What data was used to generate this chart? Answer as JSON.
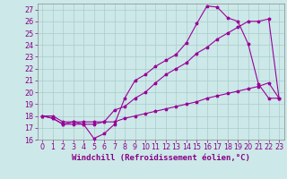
{
  "background_color": "#cce8e8",
  "grid_color": "#aacccc",
  "line_color": "#990099",
  "marker": "*",
  "xlim": [
    -0.5,
    23.5
  ],
  "ylim": [
    16,
    27.5
  ],
  "xlabel": "Windchill (Refroidissement éolien,°C)",
  "xlabel_fontsize": 6.5,
  "tick_fontsize": 5.8,
  "tick_color": "#880088",
  "line1_x": [
    0,
    1,
    2,
    3,
    4,
    5,
    6,
    7,
    8,
    9,
    10,
    11,
    12,
    13,
    14,
    15,
    16,
    17,
    18,
    19,
    20,
    21,
    22,
    23
  ],
  "line1_y": [
    18,
    17.8,
    17.3,
    17.3,
    17.3,
    16.1,
    16.5,
    17.3,
    19.5,
    21.0,
    21.5,
    22.2,
    22.7,
    23.2,
    24.2,
    25.8,
    27.3,
    27.2,
    26.3,
    26.0,
    24.1,
    20.7,
    19.5,
    19.5
  ],
  "line2_x": [
    0,
    1,
    2,
    3,
    4,
    5,
    6,
    7,
    8,
    9,
    10,
    11,
    12,
    13,
    14,
    15,
    16,
    17,
    18,
    19,
    20,
    21,
    22,
    23
  ],
  "line2_y": [
    18.0,
    17.8,
    17.3,
    17.5,
    17.3,
    17.3,
    17.5,
    18.5,
    18.8,
    19.5,
    20.0,
    20.8,
    21.5,
    22.0,
    22.5,
    23.3,
    23.8,
    24.5,
    25.0,
    25.5,
    26.0,
    26.0,
    26.2,
    19.5
  ],
  "line3_x": [
    0,
    1,
    2,
    3,
    4,
    5,
    6,
    7,
    8,
    9,
    10,
    11,
    12,
    13,
    14,
    15,
    16,
    17,
    18,
    19,
    20,
    21,
    22,
    23
  ],
  "line3_y": [
    18.0,
    18.0,
    17.5,
    17.5,
    17.5,
    17.5,
    17.5,
    17.5,
    17.8,
    18.0,
    18.2,
    18.4,
    18.6,
    18.8,
    19.0,
    19.2,
    19.5,
    19.7,
    19.9,
    20.1,
    20.3,
    20.5,
    20.8,
    19.5
  ]
}
